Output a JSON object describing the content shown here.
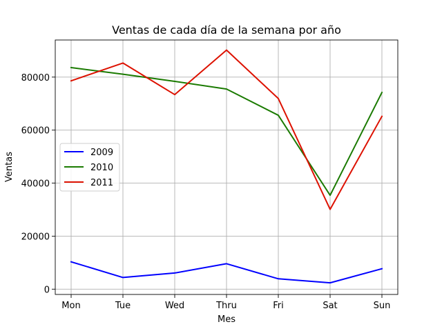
{
  "chart_data": {
    "type": "line",
    "title": "Ventas de cada día de la semana por año",
    "xlabel": "Mes",
    "ylabel": "Ventas",
    "categories": [
      "Mon",
      "Tue",
      "Wed",
      "Thru",
      "Fri",
      "Sat",
      "Sun"
    ],
    "yticks": [
      0,
      20000,
      40000,
      60000,
      80000
    ],
    "ytick_labels": [
      "0",
      "20000",
      "40000",
      "60000",
      "80000"
    ],
    "ylim": [
      -2000,
      94000
    ],
    "grid": true,
    "legend_position": "center-left",
    "series": [
      {
        "name": "2009",
        "color": "#0000ff",
        "values": [
          10300,
          4400,
          6100,
          9600,
          3900,
          2400,
          7700
        ]
      },
      {
        "name": "2010",
        "color": "#1a7a00",
        "values": [
          83600,
          81100,
          78400,
          75500,
          65600,
          35400,
          74200
        ]
      },
      {
        "name": "2011",
        "color": "#dd1100",
        "values": [
          78600,
          85300,
          73400,
          90200,
          71900,
          30100,
          65200
        ]
      }
    ]
  }
}
